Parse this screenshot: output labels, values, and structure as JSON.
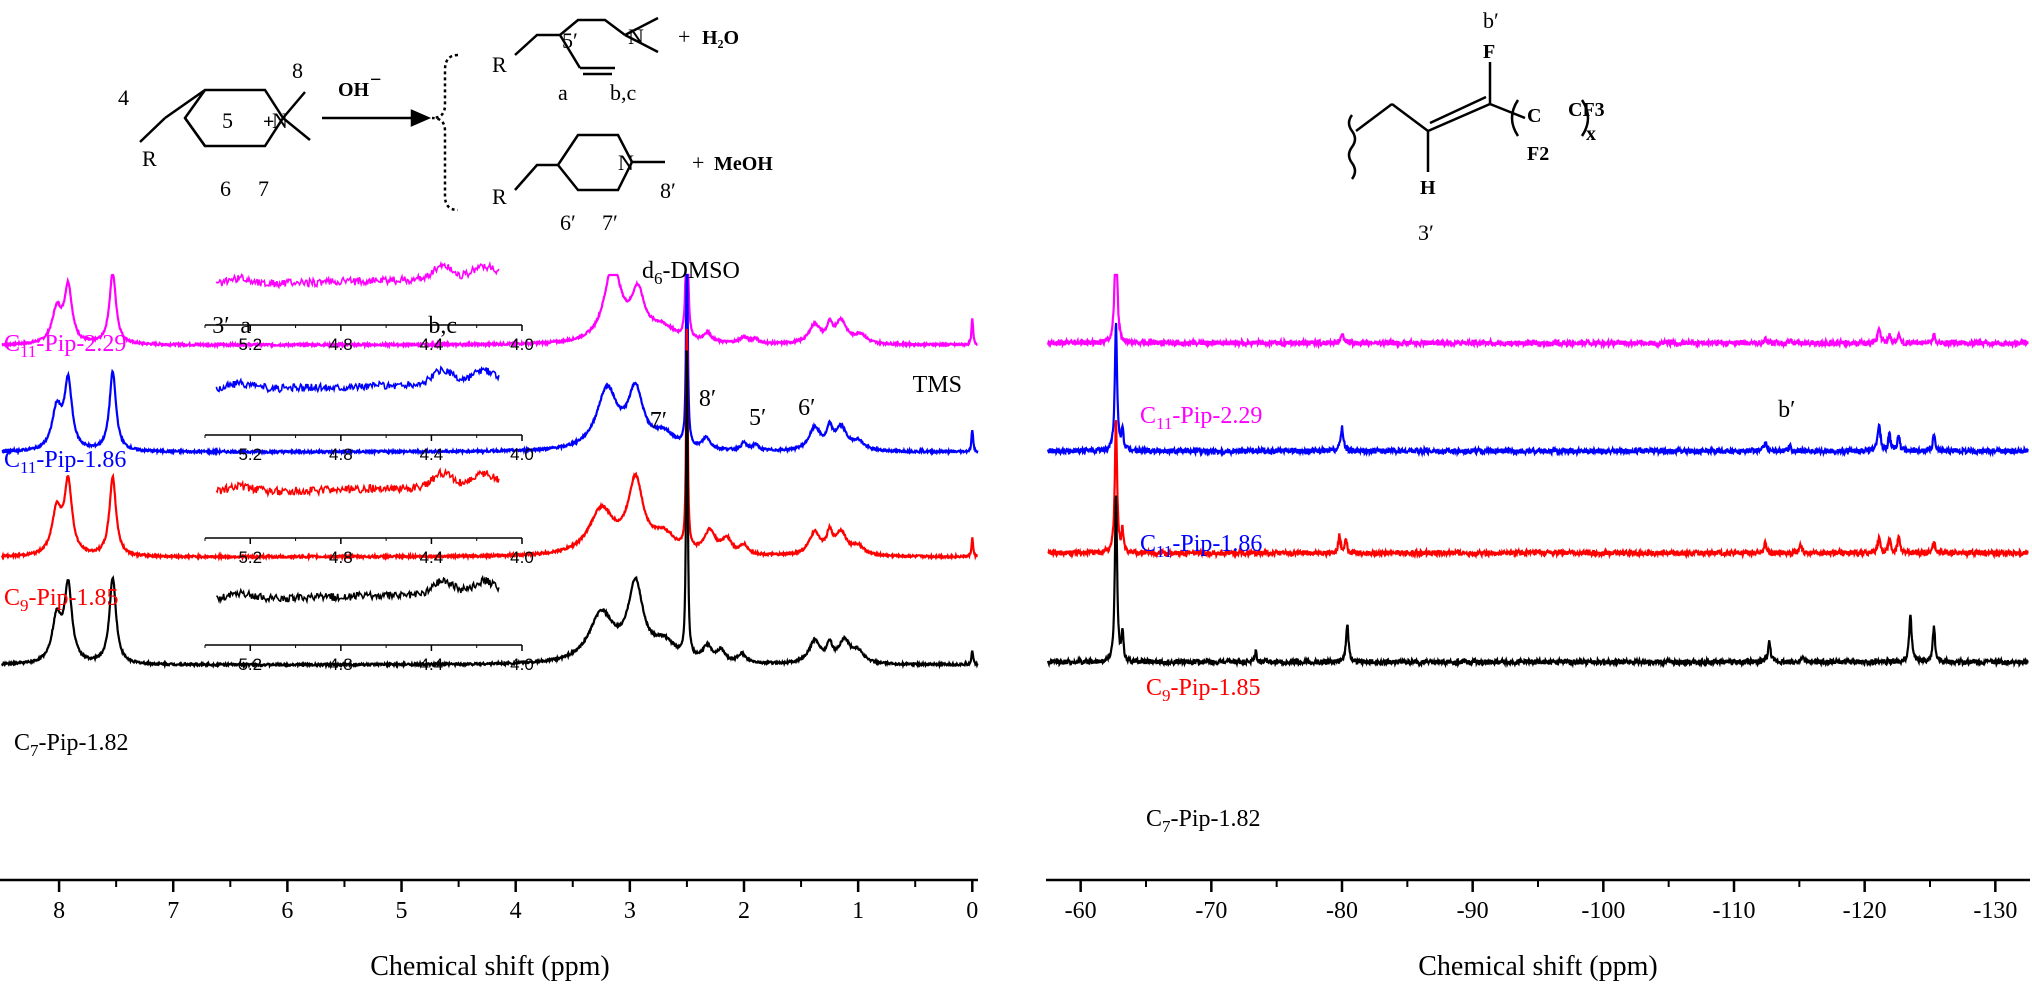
{
  "chart_data": [
    {
      "type": "line",
      "nucleus": "1H",
      "xlabel": "Chemical shift (ppm)",
      "xlim": [
        8.5,
        -0.05
      ],
      "xticks": [
        "8",
        "7",
        "6",
        "5",
        "4",
        "3",
        "2",
        "1",
        "0"
      ],
      "inset_xticks": [
        "5.2",
        "4.8",
        "4.4",
        "4.0"
      ],
      "inset_xlim": [
        5.4,
        4.0
      ],
      "peak_annotations": [
        {
          "label": "d6-DMSO",
          "x": 2.5
        },
        {
          "label": "TMS",
          "x": 0.0
        },
        {
          "label": "7′",
          "x": 2.68
        },
        {
          "label": "8′",
          "x": 2.32
        },
        {
          "label": "5′",
          "x": 1.9
        },
        {
          "label": "6′",
          "x": 1.38
        }
      ],
      "inset_annotations": [
        {
          "label": "3′",
          "x": 5.33
        },
        {
          "label": "a",
          "x": 5.22
        },
        {
          "label": "b,c",
          "x": 4.35
        }
      ],
      "series": [
        {
          "name": "C11-Pip-2.29",
          "sub": "11",
          "prefix": "C",
          "suffix": "-Pip-2.29",
          "color": "#FF00FF",
          "peaks": [
            [
              8.02,
              0.45,
              0.05
            ],
            [
              7.92,
              0.75,
              0.04
            ],
            [
              7.53,
              0.95,
              0.035
            ],
            [
              3.15,
              1.0,
              0.09
            ],
            [
              2.93,
              0.6,
              0.07
            ],
            [
              2.72,
              0.2,
              0.15
            ],
            [
              2.5,
              3.2,
              0.008
            ],
            [
              2.32,
              0.12,
              0.04
            ],
            [
              2.0,
              0.08,
              0.05
            ],
            [
              1.9,
              0.06,
              0.03
            ],
            [
              1.38,
              0.25,
              0.06
            ],
            [
              1.25,
              0.2,
              0.03
            ],
            [
              1.15,
              0.3,
              0.06
            ],
            [
              0.98,
              0.12,
              0.06
            ],
            [
              0.0,
              0.35,
              0.008
            ]
          ]
        },
        {
          "name": "C11-Pip-1.86",
          "sub": "11",
          "prefix": "C",
          "suffix": "-Pip-1.86",
          "color": "#0000FF",
          "peaks": [
            [
              8.02,
              0.55,
              0.05
            ],
            [
              7.92,
              0.9,
              0.04
            ],
            [
              7.53,
              1.05,
              0.035
            ],
            [
              3.2,
              0.8,
              0.11
            ],
            [
              2.95,
              0.75,
              0.08
            ],
            [
              2.7,
              0.2,
              0.12
            ],
            [
              2.5,
              3.0,
              0.008
            ],
            [
              2.33,
              0.15,
              0.04
            ],
            [
              2.0,
              0.1,
              0.03
            ],
            [
              1.9,
              0.08,
              0.03
            ],
            [
              1.38,
              0.3,
              0.06
            ],
            [
              1.25,
              0.25,
              0.03
            ],
            [
              1.15,
              0.3,
              0.06
            ],
            [
              1.0,
              0.12,
              0.06
            ],
            [
              0.0,
              0.3,
              0.008
            ]
          ]
        },
        {
          "name": "C9-Pip-1.85",
          "sub": "9",
          "prefix": "C",
          "suffix": "-Pip-1.85",
          "color": "#FF0000",
          "peaks": [
            [
              8.02,
              0.6,
              0.05
            ],
            [
              7.92,
              0.95,
              0.04
            ],
            [
              7.53,
              1.05,
              0.035
            ],
            [
              3.25,
              0.6,
              0.13
            ],
            [
              2.95,
              0.95,
              0.08
            ],
            [
              2.7,
              0.25,
              0.12
            ],
            [
              2.5,
              3.0,
              0.008
            ],
            [
              2.3,
              0.3,
              0.06
            ],
            [
              2.15,
              0.2,
              0.05
            ],
            [
              2.0,
              0.12,
              0.04
            ],
            [
              1.38,
              0.3,
              0.06
            ],
            [
              1.25,
              0.25,
              0.03
            ],
            [
              1.15,
              0.3,
              0.06
            ],
            [
              1.0,
              0.12,
              0.06
            ],
            [
              0.0,
              0.25,
              0.008
            ]
          ]
        },
        {
          "name": "C7-Pip-1.82",
          "sub": "7",
          "prefix": "C",
          "suffix": "-Pip-1.82",
          "color": "#000000",
          "peaks": [
            [
              8.02,
              0.6,
              0.05
            ],
            [
              7.92,
              1.0,
              0.04
            ],
            [
              7.53,
              1.15,
              0.035
            ],
            [
              3.25,
              0.65,
              0.13
            ],
            [
              2.95,
              1.0,
              0.08
            ],
            [
              2.7,
              0.25,
              0.12
            ],
            [
              2.5,
              4.2,
              0.008
            ],
            [
              2.32,
              0.2,
              0.05
            ],
            [
              2.2,
              0.15,
              0.04
            ],
            [
              2.02,
              0.12,
              0.04
            ],
            [
              1.38,
              0.3,
              0.06
            ],
            [
              1.25,
              0.22,
              0.03
            ],
            [
              1.12,
              0.3,
              0.06
            ],
            [
              1.0,
              0.15,
              0.06
            ],
            [
              0.0,
              0.2,
              0.008
            ]
          ]
        }
      ]
    },
    {
      "type": "line",
      "nucleus": "19F",
      "xlabel": "Chemical shift (ppm)",
      "xlim": [
        -57.5,
        -132.5
      ],
      "xticks": [
        "-60",
        "-70",
        "-80",
        "-90",
        "-100",
        "-110",
        "-120",
        "-130"
      ],
      "peak_annotations": [
        {
          "label": "b′",
          "x": -114.5
        }
      ],
      "series": [
        {
          "name": "C11-Pip-2.29",
          "sub": "11",
          "prefix": "C",
          "suffix": "-Pip-2.29",
          "color": "#FF00FF",
          "peaks": [
            [
              -62.7,
              5.0,
              0.1
            ],
            [
              -80.0,
              0.35,
              0.12
            ],
            [
              -112.4,
              0.15,
              0.12
            ],
            [
              -114.3,
              0.12,
              0.1
            ],
            [
              -121.1,
              0.5,
              0.12
            ],
            [
              -121.9,
              0.3,
              0.1
            ],
            [
              -122.6,
              0.3,
              0.1
            ],
            [
              -125.3,
              0.3,
              0.1
            ]
          ]
        },
        {
          "name": "C11-Pip-1.86",
          "sub": "11",
          "prefix": "C",
          "suffix": "-Pip-1.86",
          "color": "#0000FF",
          "peaks": [
            [
              -62.7,
              4.6,
              0.1
            ],
            [
              -63.2,
              0.8,
              0.08
            ],
            [
              -80.0,
              0.85,
              0.12
            ],
            [
              -112.4,
              0.35,
              0.12
            ],
            [
              -114.3,
              0.15,
              0.1
            ],
            [
              -121.1,
              1.0,
              0.12
            ],
            [
              -121.9,
              0.6,
              0.1
            ],
            [
              -122.6,
              0.6,
              0.1
            ],
            [
              -125.3,
              0.6,
              0.1
            ]
          ]
        },
        {
          "name": "C9-Pip-1.85",
          "sub": "9",
          "prefix": "C",
          "suffix": "-Pip-1.85",
          "color": "#FF0000",
          "peaks": [
            [
              -62.7,
              4.8,
              0.1
            ],
            [
              -63.2,
              0.8,
              0.08
            ],
            [
              -79.8,
              0.6,
              0.1
            ],
            [
              -80.3,
              0.55,
              0.1
            ],
            [
              -112.4,
              0.35,
              0.12
            ],
            [
              -115.1,
              0.3,
              0.1
            ],
            [
              -121.1,
              0.5,
              0.12
            ],
            [
              -121.9,
              0.5,
              0.1
            ],
            [
              -122.6,
              0.6,
              0.1
            ],
            [
              -125.3,
              0.45,
              0.1
            ]
          ]
        },
        {
          "name": "C7-Pip-1.82",
          "sub": "7",
          "prefix": "C",
          "suffix": "-Pip-1.82",
          "color": "#000000",
          "peaks": [
            [
              -62.7,
              6.0,
              0.1
            ],
            [
              -63.2,
              1.0,
              0.08
            ],
            [
              -73.4,
              0.4,
              0.08
            ],
            [
              -80.4,
              1.3,
              0.12
            ],
            [
              -112.7,
              0.7,
              0.12
            ],
            [
              -115.3,
              0.15,
              0.1
            ],
            [
              -123.5,
              1.6,
              0.12
            ],
            [
              -125.3,
              1.3,
              0.1
            ]
          ]
        }
      ]
    }
  ],
  "scheme": {
    "reagent": "OH",
    "reagent_charge": "−",
    "numbers": [
      "4",
      "5",
      "6",
      "7",
      "8",
      "R",
      "+",
      "N"
    ],
    "product1_labels": [
      "5′",
      "a",
      "b,c"
    ],
    "product1_byproduct": "H₂O",
    "product2_labels": [
      "6′",
      "7′",
      "8′"
    ],
    "product2_byproduct": "MeOH",
    "plus": "+"
  },
  "structure2": {
    "labels": [
      "b′",
      "F",
      "H",
      "3′",
      "CF3",
      "C",
      "F2",
      "x"
    ]
  }
}
